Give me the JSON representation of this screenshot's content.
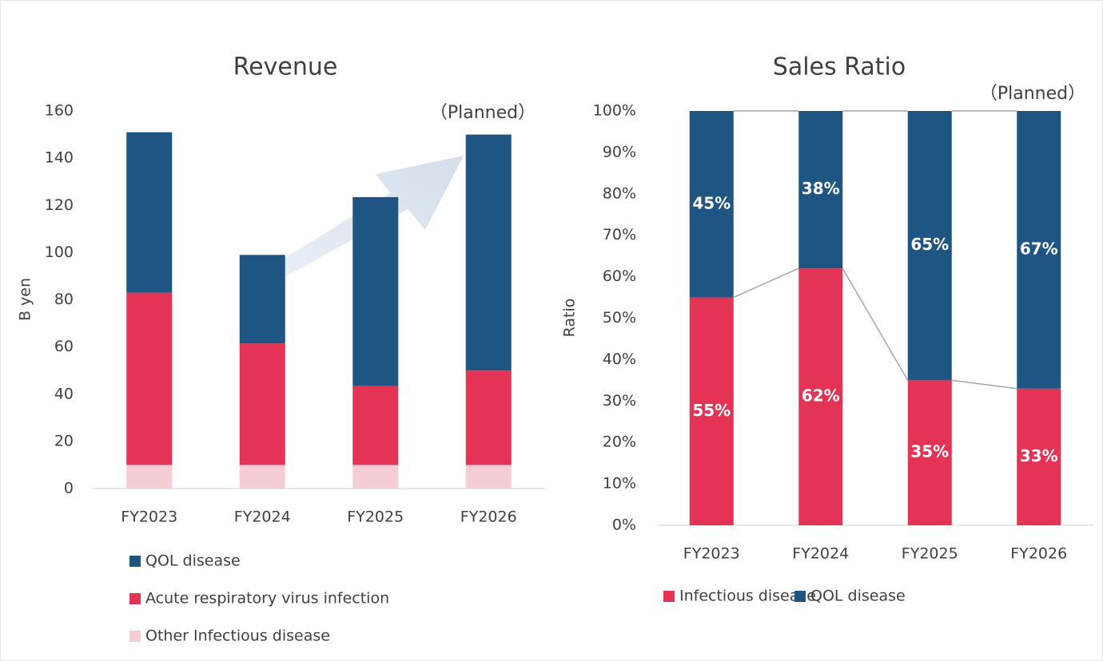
{
  "chart_data": [
    {
      "type": "stacked_bar",
      "title": "Revenue",
      "y_label": "B yen",
      "annotation": "（Planned）",
      "categories": [
        "FY2023",
        "FY2024",
        "FY2025",
        "FY2026"
      ],
      "series": [
        {
          "name": "Other Infectious disease",
          "color": "#f7cdd5",
          "values": [
            10,
            10,
            10,
            10
          ]
        },
        {
          "name": "Acute respiratory virus infection",
          "color": "#e33455",
          "values": [
            73,
            51.5,
            33.5,
            40
          ]
        },
        {
          "name": "QOL disease",
          "color": "#1f5582",
          "values": [
            68,
            37.5,
            80,
            100
          ]
        }
      ],
      "ylim": [
        0,
        160
      ],
      "yticks": [
        0,
        20,
        40,
        60,
        80,
        100,
        120,
        140,
        160
      ],
      "legend": "bottom"
    },
    {
      "type": "stacked_bar",
      "title": "Sales Ratio",
      "y_label": "Ratio",
      "annotation": "（Planned）",
      "categories": [
        "FY2023",
        "FY2024",
        "FY2025",
        "FY2026"
      ],
      "series": [
        {
          "name": "Infectious disease",
          "color": "#e33455",
          "values": [
            55,
            62,
            35,
            33
          ],
          "value_labels": [
            "55%",
            "62%",
            "35%",
            "33%"
          ]
        },
        {
          "name": "QOL disease",
          "color": "#1f5582",
          "values": [
            45,
            38,
            65,
            67
          ],
          "value_labels": [
            "45%",
            "38%",
            "65%",
            "67%"
          ]
        }
      ],
      "ylim": [
        0,
        100
      ],
      "yticks": [
        {
          "value": 0,
          "label": "0%"
        },
        {
          "value": 10,
          "label": "10%"
        },
        {
          "value": 20,
          "label": "20%"
        },
        {
          "value": 30,
          "label": "30%"
        },
        {
          "value": 40,
          "label": "40%"
        },
        {
          "value": 50,
          "label": "50%"
        },
        {
          "value": 60,
          "label": "60%"
        },
        {
          "value": 70,
          "label": "70%"
        },
        {
          "value": 80,
          "label": "80%"
        },
        {
          "value": 90,
          "label": "90%"
        },
        {
          "value": 100,
          "label": "100%"
        }
      ],
      "legend": "bottom"
    }
  ]
}
